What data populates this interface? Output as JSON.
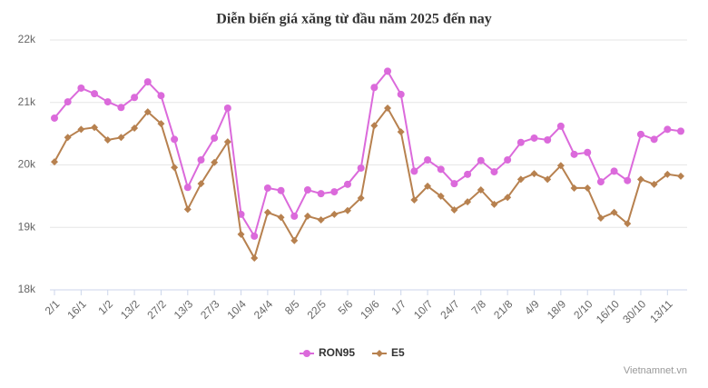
{
  "chart_data": {
    "type": "line",
    "title": "Diễn biến giá xăng từ đầu năm 2025 đến nay",
    "categories": [
      "2/1",
      null,
      "16/1",
      null,
      "1/2",
      null,
      "13/2",
      null,
      "27/2",
      null,
      "13/3",
      null,
      "27/3",
      null,
      "10/4",
      null,
      "24/4",
      null,
      "8/5",
      null,
      "22/5",
      null,
      "5/6",
      null,
      "19/6",
      null,
      "1/7",
      null,
      "10/7",
      null,
      "24/7",
      null,
      "7/8",
      null,
      "21/8",
      null,
      "4/9",
      null,
      "18/9",
      null,
      "2/10",
      null,
      "16/10",
      null,
      "30/10",
      null,
      "13/11",
      null
    ],
    "series": [
      {
        "name": "RON95",
        "color": "#db6adb",
        "marker": "circle",
        "values": [
          20750,
          21010,
          21230,
          21140,
          21010,
          20920,
          21080,
          21330,
          21110,
          20410,
          19640,
          20080,
          20430,
          20910,
          19210,
          18860,
          19630,
          19590,
          19180,
          19600,
          19540,
          19570,
          19690,
          19950,
          21240,
          21500,
          21130,
          19900,
          20080,
          19930,
          19700,
          19850,
          20070,
          19890,
          20080,
          20360,
          20430,
          20400,
          20620,
          20170,
          20200,
          19730,
          19900,
          19750,
          20490,
          20410,
          20570,
          20540
        ]
      },
      {
        "name": "E5",
        "color": "#b7814f",
        "marker": "diamond",
        "values": [
          20050,
          20440,
          20570,
          20600,
          20400,
          20440,
          20590,
          20850,
          20660,
          19960,
          19290,
          19700,
          20040,
          20370,
          18890,
          18510,
          19240,
          19160,
          18790,
          19180,
          19120,
          19210,
          19270,
          19470,
          20630,
          20910,
          20530,
          19440,
          19660,
          19500,
          19280,
          19410,
          19600,
          19370,
          19480,
          19770,
          19860,
          19770,
          19990,
          19630,
          19630,
          19150,
          19240,
          19060,
          19770,
          19690,
          19850,
          19820
        ]
      }
    ],
    "ylim": [
      18000,
      22000
    ],
    "yticks": [
      {
        "value": 18000,
        "label": "18k"
      },
      {
        "value": 19000,
        "label": "19k"
      },
      {
        "value": 20000,
        "label": "20k"
      },
      {
        "value": 21000,
        "label": "21k"
      },
      {
        "value": 22000,
        "label": "22k"
      }
    ],
    "grid": true,
    "legend": "bottom",
    "source": "Vietnamnet.vn"
  }
}
